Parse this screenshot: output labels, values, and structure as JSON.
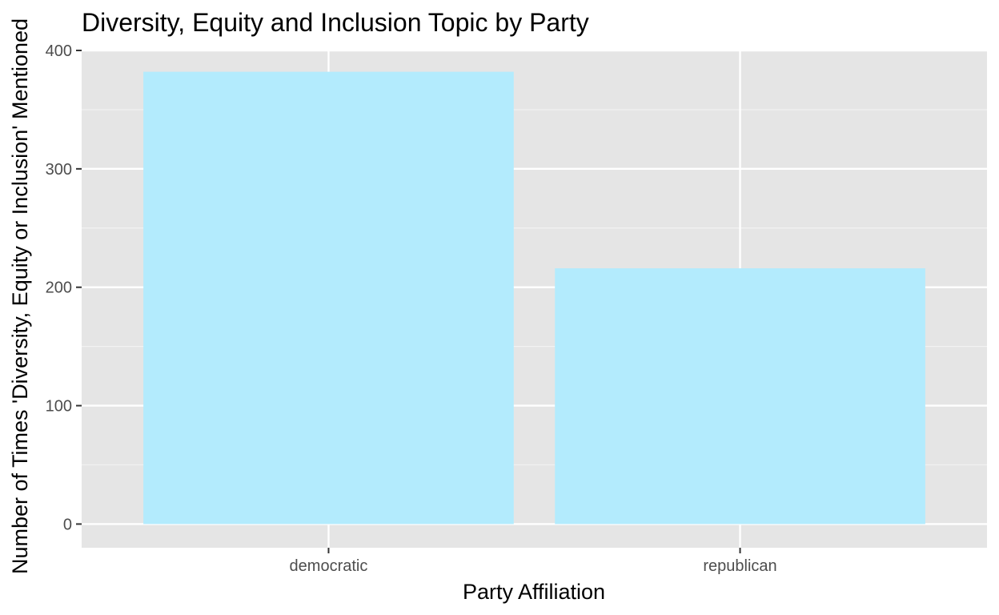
{
  "chart_data": {
    "type": "bar",
    "title": "Diversity, Equity and Inclusion Topic by Party",
    "xlabel": "Party Affiliation",
    "ylabel": "Number of Times 'Diversity, Equity or Inclusion' Mentioned",
    "categories": [
      "democratic",
      "republican"
    ],
    "values": [
      382,
      216
    ],
    "ylim": [
      -20,
      400
    ],
    "yticks": [
      0,
      100,
      200,
      300,
      400
    ],
    "ytick_labels": [
      "0",
      "100",
      "200",
      "300",
      "400"
    ],
    "grid": true,
    "legend": "none",
    "colors": {
      "bar_fill": "#b3ebfd",
      "panel_background": "#e5e5e5",
      "grid_major": "#ffffff",
      "grid_minor": "#f2f2f2",
      "tick_text": "#4d4d4d",
      "tick_mark": "#333333"
    }
  }
}
